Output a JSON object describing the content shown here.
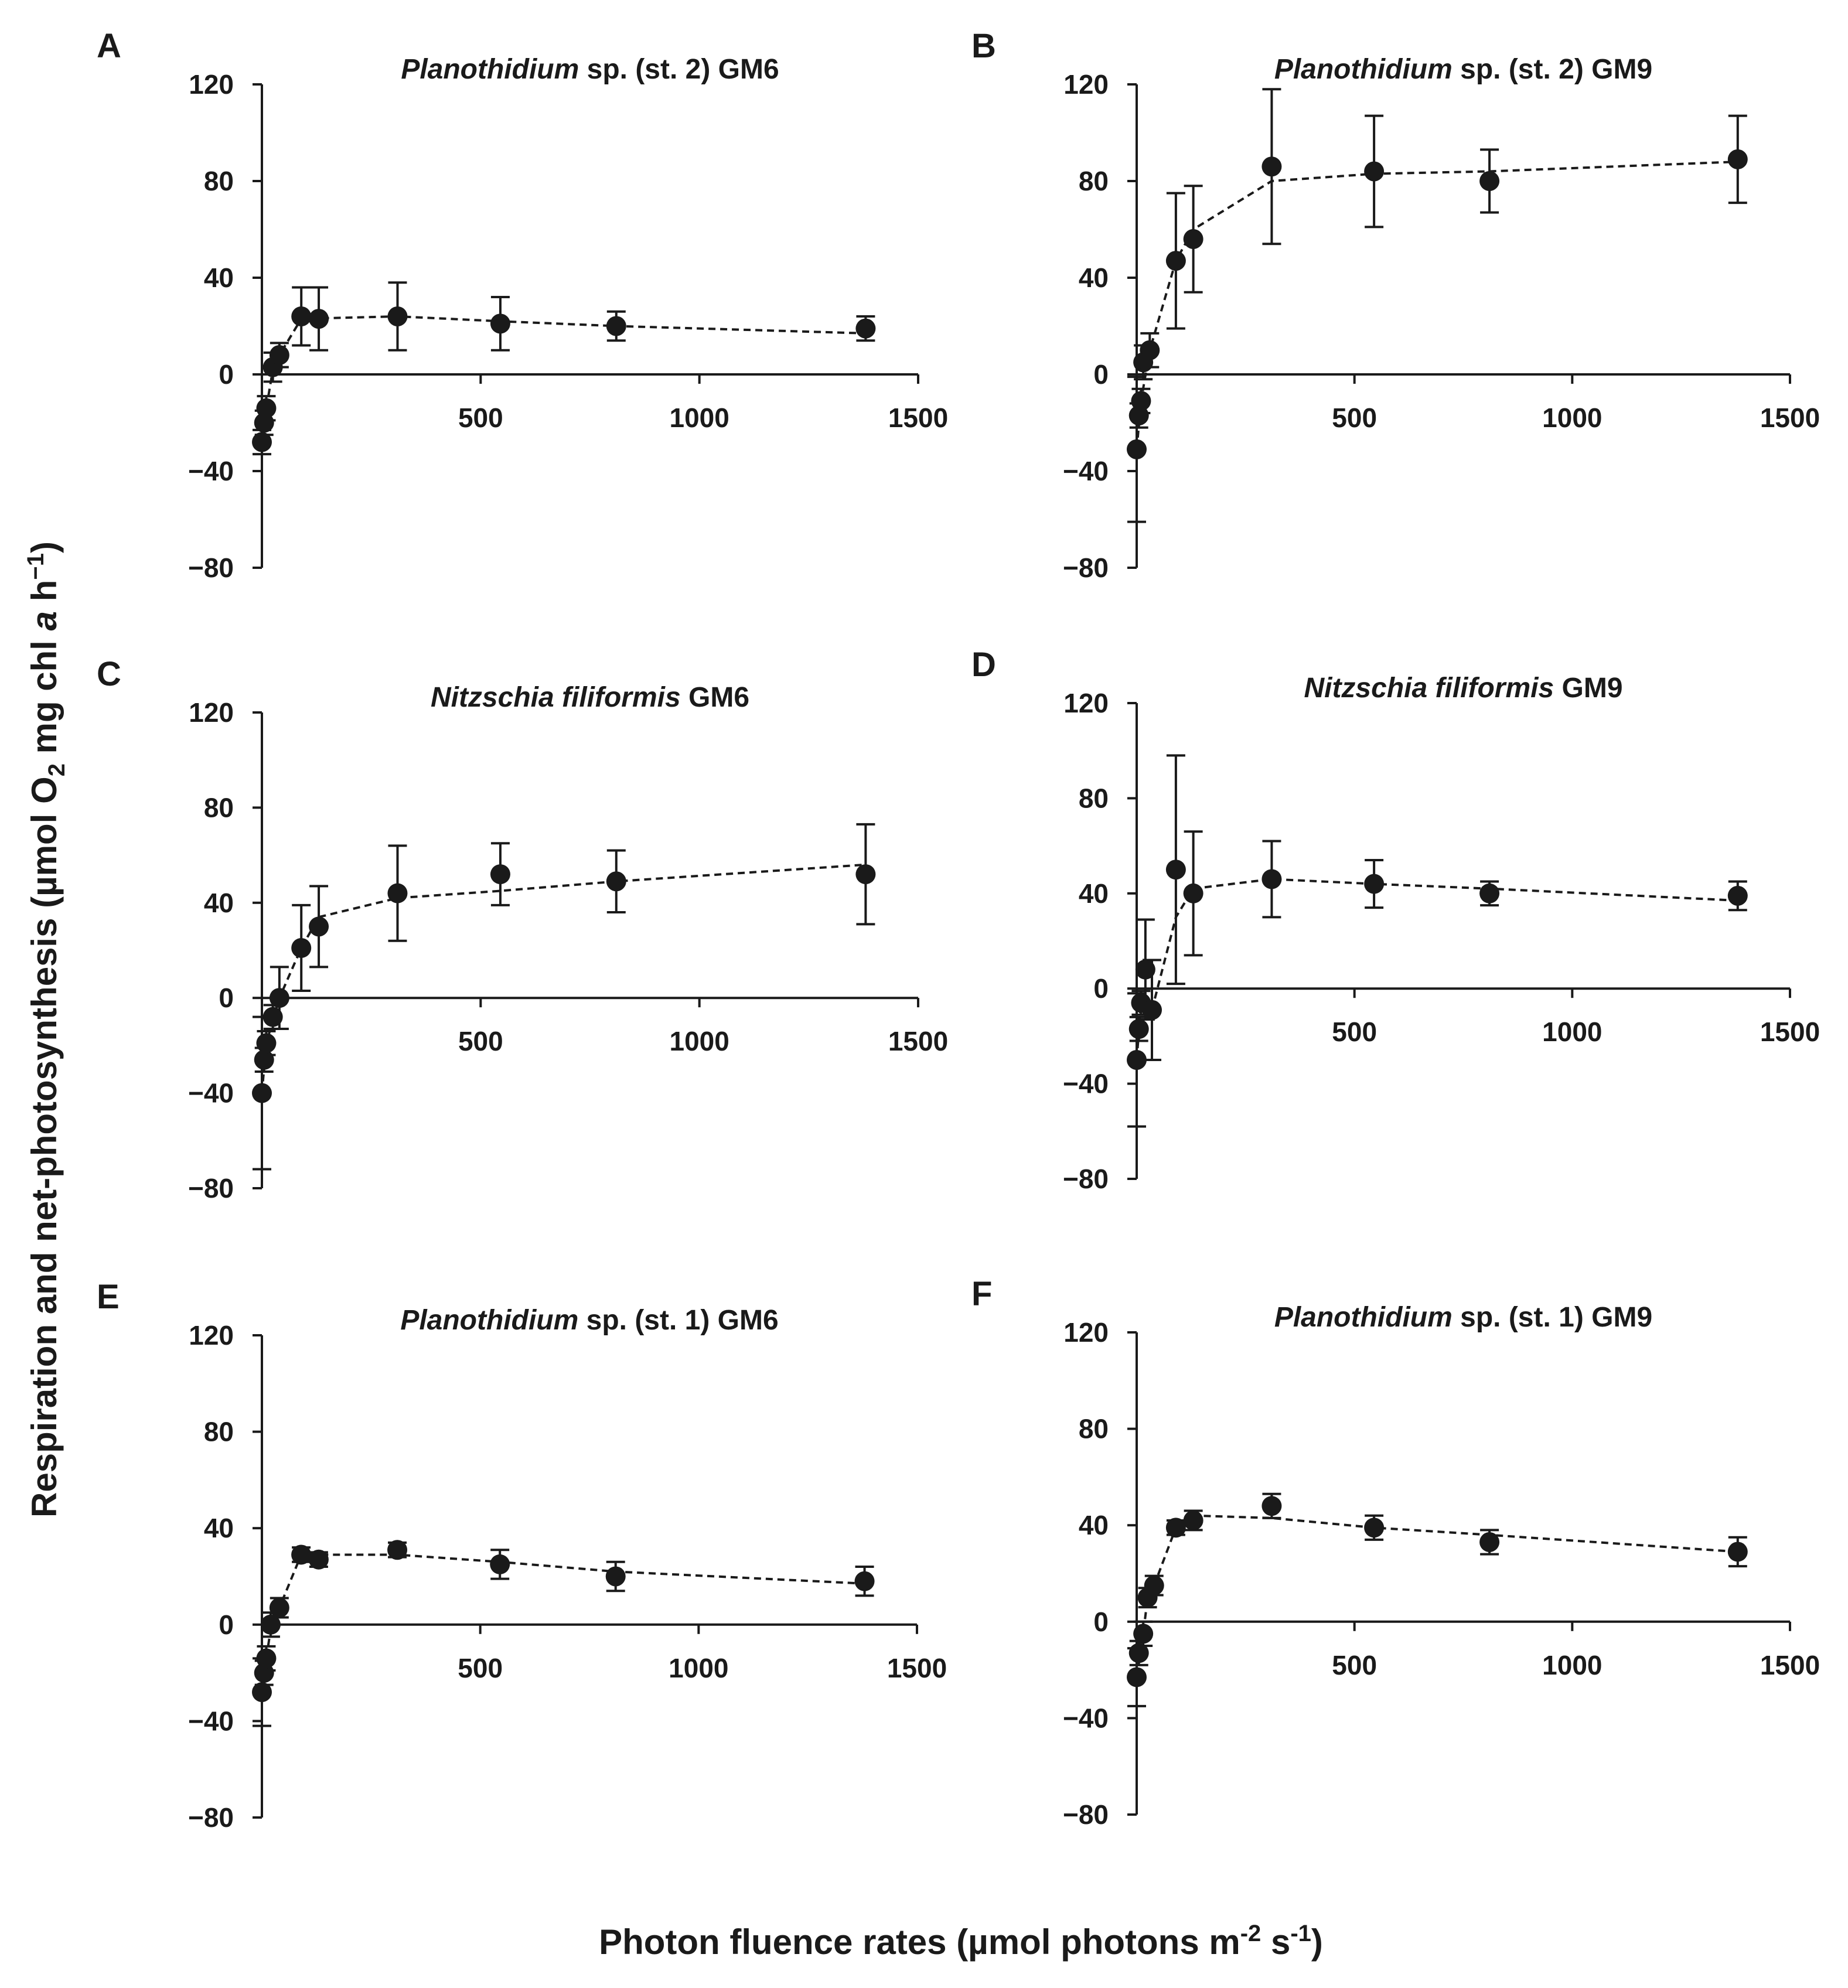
{
  "figure": {
    "ylabel": {
      "main": "Respiration and net-photosynthesis (µmol O",
      "sub1": "2",
      "mid": " mg chl ",
      "italic": "a",
      "end": " h",
      "sup1": "−1",
      "close": ")"
    },
    "xlabel": {
      "main": "Photon fluence rates (µmol photons m",
      "sup1": "-2",
      "mid": " s",
      "sup2": "-1",
      "close": ")"
    }
  },
  "chart_data": [
    {
      "type": "scatter",
      "panel": "A",
      "title_italic": "Planothidium",
      "title_rest": " sp. (st. 2) GM6",
      "xlim": [
        0,
        1500
      ],
      "ylim": [
        -80,
        120
      ],
      "xticks": [
        "500",
        "1000",
        "1500"
      ],
      "yticks": [
        "120",
        "80",
        "40",
        "0",
        "−40",
        "−80"
      ],
      "points": [
        {
          "x": 0,
          "y": -28,
          "err": 5
        },
        {
          "x": 5,
          "y": -20,
          "err": 5
        },
        {
          "x": 10,
          "y": -14,
          "err": 5
        },
        {
          "x": 25,
          "y": 3,
          "err": 6
        },
        {
          "x": 40,
          "y": 8,
          "err": 5
        },
        {
          "x": 90,
          "y": 24,
          "err": 12
        },
        {
          "x": 130,
          "y": 23,
          "err": 13
        },
        {
          "x": 310,
          "y": 24,
          "err": 14
        },
        {
          "x": 545,
          "y": 21,
          "err": 11
        },
        {
          "x": 810,
          "y": 20,
          "err": 6
        },
        {
          "x": 1380,
          "y": 19,
          "err": 5
        }
      ],
      "fit": [
        [
          0,
          -28
        ],
        [
          10,
          -14
        ],
        [
          25,
          2
        ],
        [
          40,
          8
        ],
        [
          90,
          23
        ],
        [
          310,
          24
        ],
        [
          545,
          22
        ],
        [
          810,
          20
        ],
        [
          1380,
          17
        ]
      ]
    },
    {
      "type": "scatter",
      "panel": "B",
      "title_italic": "Planothidium",
      "title_rest": " sp. (st. 2) GM9",
      "xlim": [
        0,
        1500
      ],
      "ylim": [
        -80,
        120
      ],
      "xticks": [
        "500",
        "1000",
        "1500"
      ],
      "yticks": [
        "120",
        "80",
        "40",
        "0",
        "−40",
        "−80"
      ],
      "points": [
        {
          "x": 0,
          "y": -31,
          "err": 30
        },
        {
          "x": 5,
          "y": -17,
          "err": 5
        },
        {
          "x": 10,
          "y": -11,
          "err": 5
        },
        {
          "x": 15,
          "y": 5,
          "err": 7
        },
        {
          "x": 30,
          "y": 10,
          "err": 7
        },
        {
          "x": 90,
          "y": 47,
          "err": 28
        },
        {
          "x": 130,
          "y": 56,
          "err": 22
        },
        {
          "x": 310,
          "y": 86,
          "err": 32
        },
        {
          "x": 545,
          "y": 84,
          "err": 23
        },
        {
          "x": 810,
          "y": 80,
          "err": 13
        },
        {
          "x": 1380,
          "y": 89,
          "err": 18
        }
      ],
      "fit": [
        [
          0,
          -31
        ],
        [
          10,
          -11
        ],
        [
          30,
          10
        ],
        [
          90,
          47
        ],
        [
          130,
          60
        ],
        [
          310,
          80
        ],
        [
          545,
          83
        ],
        [
          810,
          84
        ],
        [
          1380,
          88
        ]
      ]
    },
    {
      "type": "scatter",
      "panel": "C",
      "title_italic": "Nitzschia filiformis",
      "title_rest": " GM6",
      "xlim": [
        0,
        1500
      ],
      "ylim": [
        -80,
        120
      ],
      "xticks": [
        "500",
        "1000",
        "1500"
      ],
      "yticks": [
        "120",
        "80",
        "40",
        "0",
        "−40",
        "−80"
      ],
      "points": [
        {
          "x": 0,
          "y": -40,
          "err": 32
        },
        {
          "x": 5,
          "y": -26,
          "err": 5
        },
        {
          "x": 10,
          "y": -19,
          "err": 5
        },
        {
          "x": 25,
          "y": -8,
          "err": 5
        },
        {
          "x": 40,
          "y": 0,
          "err": 13
        },
        {
          "x": 90,
          "y": 21,
          "err": 18
        },
        {
          "x": 130,
          "y": 30,
          "err": 17
        },
        {
          "x": 310,
          "y": 44,
          "err": 20
        },
        {
          "x": 545,
          "y": 52,
          "err": 13
        },
        {
          "x": 810,
          "y": 49,
          "err": 13
        },
        {
          "x": 1380,
          "y": 52,
          "err": 21
        }
      ],
      "fit": [
        [
          0,
          -40
        ],
        [
          10,
          -19
        ],
        [
          40,
          0
        ],
        [
          90,
          21
        ],
        [
          130,
          34
        ],
        [
          310,
          42
        ],
        [
          545,
          45
        ],
        [
          810,
          49
        ],
        [
          1380,
          56
        ]
      ]
    },
    {
      "type": "scatter",
      "panel": "D",
      "title_italic": "Nitzschia filiformis",
      "title_rest": " GM9",
      "xlim": [
        0,
        1500
      ],
      "ylim": [
        -80,
        120
      ],
      "xticks": [
        "500",
        "1000",
        "1500"
      ],
      "yticks": [
        "120",
        "80",
        "40",
        "0",
        "−40",
        "−80"
      ],
      "points": [
        {
          "x": 0,
          "y": -30,
          "err": 28
        },
        {
          "x": 5,
          "y": -17,
          "err": 5
        },
        {
          "x": 10,
          "y": -6,
          "err": 5
        },
        {
          "x": 20,
          "y": 8,
          "err": 21
        },
        {
          "x": 35,
          "y": -9,
          "err": 21
        },
        {
          "x": 90,
          "y": 50,
          "err": 48
        },
        {
          "x": 130,
          "y": 40,
          "err": 26
        },
        {
          "x": 310,
          "y": 46,
          "err": 16
        },
        {
          "x": 545,
          "y": 44,
          "err": 10
        },
        {
          "x": 810,
          "y": 40,
          "err": 5
        },
        {
          "x": 1380,
          "y": 39,
          "err": 6
        }
      ],
      "fit": [
        [
          0,
          -30
        ],
        [
          10,
          -6
        ],
        [
          35,
          -9
        ],
        [
          90,
          30
        ],
        [
          130,
          42
        ],
        [
          310,
          46
        ],
        [
          545,
          44
        ],
        [
          810,
          42
        ],
        [
          1380,
          37
        ]
      ]
    },
    {
      "type": "scatter",
      "panel": "E",
      "title_italic": "Planothidium",
      "title_rest": " sp. (st. 1) GM6",
      "xlim": [
        0,
        1500
      ],
      "ylim": [
        -80,
        120
      ],
      "xticks": [
        "500",
        "1000",
        "1500"
      ],
      "yticks": [
        "120",
        "80",
        "40",
        "0",
        "−40",
        "−80"
      ],
      "points": [
        {
          "x": 0,
          "y": -28,
          "err": 14
        },
        {
          "x": 5,
          "y": -20,
          "err": 5
        },
        {
          "x": 10,
          "y": -14,
          "err": 5
        },
        {
          "x": 20,
          "y": 0,
          "err": 5
        },
        {
          "x": 40,
          "y": 7,
          "err": 4
        },
        {
          "x": 90,
          "y": 29,
          "err": 3
        },
        {
          "x": 130,
          "y": 27,
          "err": 3
        },
        {
          "x": 310,
          "y": 31,
          "err": 3
        },
        {
          "x": 545,
          "y": 25,
          "err": 6
        },
        {
          "x": 810,
          "y": 20,
          "err": 6
        },
        {
          "x": 1380,
          "y": 18,
          "err": 6
        }
      ],
      "fit": [
        [
          0,
          -28
        ],
        [
          10,
          -14
        ],
        [
          20,
          -2
        ],
        [
          40,
          7
        ],
        [
          90,
          29
        ],
        [
          310,
          29
        ],
        [
          545,
          26
        ],
        [
          810,
          22
        ],
        [
          1380,
          17
        ]
      ]
    },
    {
      "type": "scatter",
      "panel": "F",
      "title_italic": "Planothidium",
      "title_rest": " sp. (st. 1) GM9",
      "xlim": [
        0,
        1500
      ],
      "ylim": [
        -80,
        120
      ],
      "xticks": [
        "500",
        "1000",
        "1500"
      ],
      "yticks": [
        "120",
        "80",
        "40",
        "0",
        "−40",
        "−80"
      ],
      "points": [
        {
          "x": 0,
          "y": -23,
          "err": 12
        },
        {
          "x": 5,
          "y": -13,
          "err": 5
        },
        {
          "x": 15,
          "y": -5,
          "err": 5
        },
        {
          "x": 25,
          "y": 10,
          "err": 4
        },
        {
          "x": 40,
          "y": 15,
          "err": 4
        },
        {
          "x": 90,
          "y": 39,
          "err": 3
        },
        {
          "x": 130,
          "y": 42,
          "err": 4
        },
        {
          "x": 310,
          "y": 48,
          "err": 5
        },
        {
          "x": 545,
          "y": 39,
          "err": 5
        },
        {
          "x": 810,
          "y": 33,
          "err": 5
        },
        {
          "x": 1380,
          "y": 29,
          "err": 6
        }
      ],
      "fit": [
        [
          0,
          -23
        ],
        [
          15,
          -5
        ],
        [
          25,
          10
        ],
        [
          40,
          15
        ],
        [
          90,
          39
        ],
        [
          130,
          44
        ],
        [
          310,
          43
        ],
        [
          545,
          39
        ],
        [
          810,
          36
        ],
        [
          1380,
          29
        ]
      ]
    }
  ]
}
